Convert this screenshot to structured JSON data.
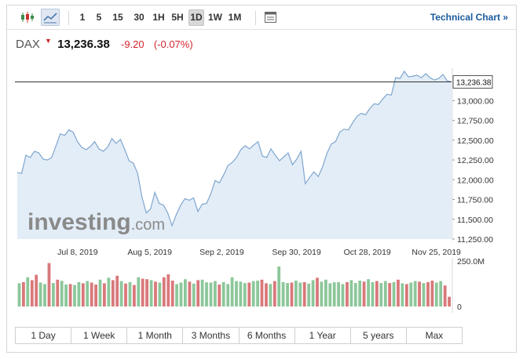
{
  "toolbar": {
    "intervals": [
      "1",
      "5",
      "15",
      "30",
      "1H",
      "5H",
      "1D",
      "1W",
      "1M"
    ],
    "active_interval": "1D",
    "technical_link": "Technical Chart »"
  },
  "quote": {
    "name": "DAX",
    "price": "13,236.38",
    "change": "-9.20",
    "change_pct": "(-0.07%)",
    "down_color": "#d3262f"
  },
  "watermark": {
    "brand": "investing",
    "suffix": ".com"
  },
  "ranges": [
    "1 Day",
    "1 Week",
    "1 Month",
    "3 Months",
    "6 Months",
    "1 Year",
    "5 years",
    "Max"
  ],
  "chart_data": {
    "type": "area",
    "x_ticks": [
      "Jul 8, 2019",
      "Aug 5, 2019",
      "Sep 2, 2019",
      "Sep 30, 2019",
      "Oct 28, 2019",
      "Nov 25, 2019"
    ],
    "y_ticks": [
      "13,000.00",
      "12,750.00",
      "12,500.00",
      "12,250.00",
      "12,000.00",
      "11,750.00",
      "11,500.00",
      "11,250.00"
    ],
    "ylim": [
      11250,
      13370
    ],
    "last_value": 13236.38,
    "last_label": "13,236.38",
    "line_color": "#7fa6cf",
    "fill_color": "#e3edf7",
    "values": [
      12090,
      12080,
      12310,
      12280,
      12360,
      12340,
      12260,
      12250,
      12280,
      12430,
      12580,
      12560,
      12630,
      12600,
      12480,
      12410,
      12380,
      12420,
      12480,
      12390,
      12360,
      12410,
      12520,
      12460,
      12510,
      12380,
      12240,
      12210,
      12080,
      11780,
      11580,
      11630,
      11840,
      11700,
      11680,
      11580,
      11420,
      11560,
      11680,
      11760,
      11740,
      11770,
      11600,
      11690,
      11700,
      11820,
      11990,
      11960,
      12060,
      12180,
      12220,
      12280,
      12380,
      12430,
      12390,
      12440,
      12480,
      12300,
      12280,
      12390,
      12310,
      12240,
      12290,
      12340,
      12190,
      12260,
      12360,
      11950,
      12030,
      12100,
      12040,
      12160,
      12330,
      12450,
      12480,
      12600,
      12640,
      12630,
      12720,
      12800,
      12840,
      12820,
      12900,
      12960,
      12950,
      13020,
      13080,
      13070,
      13290,
      13280,
      13370,
      13300,
      13310,
      13320,
      13290,
      13340,
      13290,
      13260,
      13280,
      13330,
      13250,
      13236
    ],
    "volume": {
      "axis_max_label": "250.0M",
      "axis_zero_label": "0",
      "up_color": "#8cc79a",
      "down_color": "#d9787a",
      "values": [
        95,
        100,
        120,
        108,
        130,
        98,
        92,
        178,
        96,
        110,
        105,
        90,
        92,
        88,
        100,
        95,
        104,
        98,
        90,
        110,
        95,
        118,
        108,
        126,
        104,
        94,
        100,
        88,
        120,
        114,
        112,
        108,
        102,
        98,
        120,
        132,
        106,
        92,
        98,
        112,
        102,
        94,
        108,
        110,
        99,
        98,
        104,
        90,
        100,
        92,
        120,
        104,
        102,
        96,
        98,
        104,
        106,
        110,
        95,
        92,
        104,
        164,
        100,
        96,
        98,
        106,
        98,
        100,
        94,
        108,
        118,
        102,
        110,
        95,
        99,
        100,
        92,
        100,
        108,
        96,
        106,
        102,
        112,
        100,
        104,
        96,
        104,
        96,
        100,
        110,
        95,
        92,
        98,
        104,
        102,
        96,
        100,
        106,
        98,
        104,
        86,
        40
      ],
      "up": [
        1,
        0,
        1,
        0,
        0,
        1,
        1,
        0,
        1,
        0,
        1,
        1,
        0,
        1,
        1,
        0,
        1,
        0,
        0,
        1,
        0,
        1,
        0,
        0,
        1,
        0,
        1,
        0,
        1,
        0,
        0,
        1,
        0,
        1,
        0,
        0,
        0,
        1,
        1,
        1,
        0,
        1,
        0,
        1,
        1,
        1,
        1,
        0,
        1,
        1,
        1,
        1,
        1,
        1,
        0,
        1,
        1,
        0,
        0,
        1,
        0,
        1,
        1,
        1,
        0,
        1,
        1,
        0,
        1,
        1,
        0,
        1,
        1,
        1,
        1,
        1,
        1,
        0,
        1,
        1,
        1,
        0,
        1,
        1,
        0,
        1,
        1,
        0,
        1,
        0,
        1,
        0,
        1,
        1,
        0,
        1,
        0,
        0,
        1,
        1,
        0,
        0
      ]
    }
  }
}
